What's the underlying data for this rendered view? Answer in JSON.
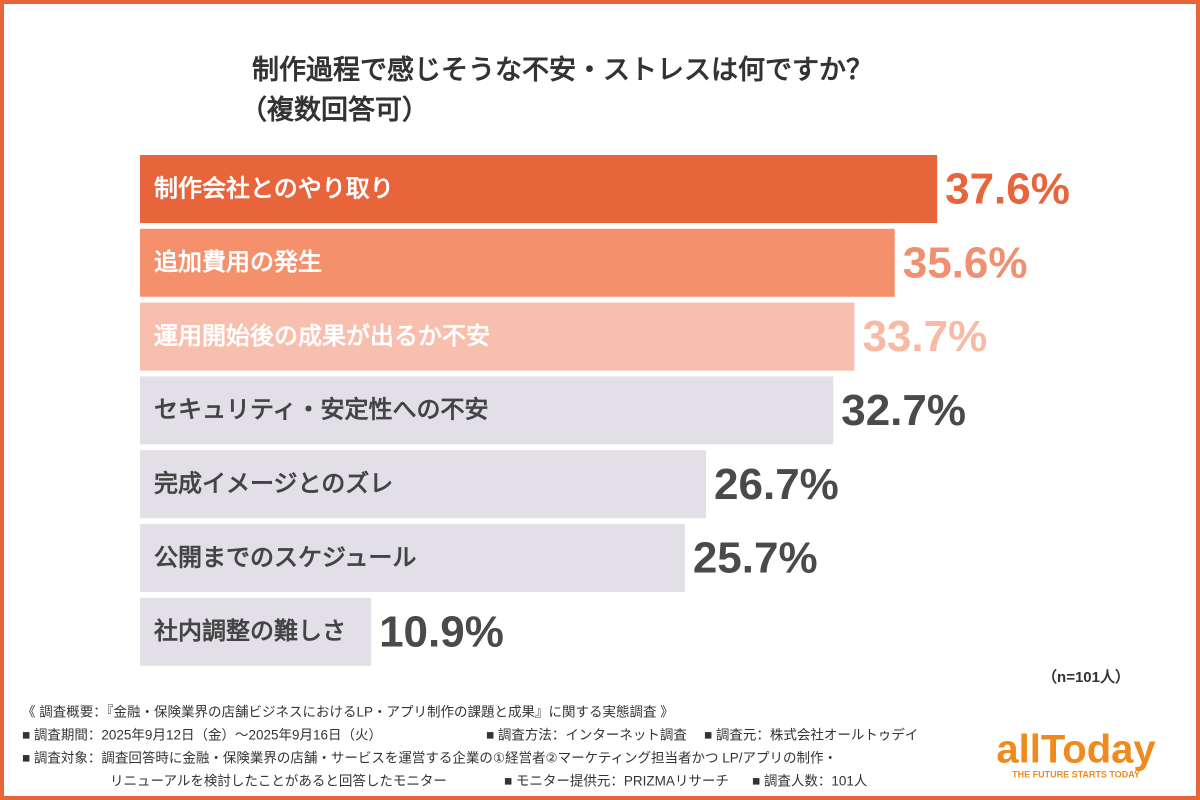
{
  "chart_data": {
    "type": "bar",
    "orientation": "horizontal",
    "title": [
      "制作過程で感じそうな不安・ストレスは何ですか？",
      "（複数回答可）"
    ],
    "categories": [
      "制作会社とのやり取り",
      "追加費用の発生",
      "運用開始後の成果が出るか不安",
      "セキュリティ・安定性への不安",
      "完成イメージとのズレ",
      "公開までのスケジュール",
      "社内調整の難しさ"
    ],
    "values": [
      37.6,
      35.6,
      33.7,
      32.7,
      26.7,
      25.7,
      10.9
    ],
    "value_labels": [
      "37.6%",
      "35.6%",
      "33.7%",
      "32.7%",
      "26.7%",
      "25.7%",
      "10.9%"
    ],
    "colors": [
      "#e8643a",
      "#f4916c",
      "#f9bfae",
      "#e2e0e6",
      "#e2e0e6",
      "#e2e0e6",
      "#e2e0e6"
    ],
    "category_text_colors": [
      "#ffffff",
      "#ffffff",
      "#ffffff",
      "#444444",
      "#444444",
      "#444444",
      "#444444"
    ],
    "value_label_colors": [
      "#e8643a",
      "#f09070",
      "#f8b9a5",
      "#4a4a4a",
      "#4a4a4a",
      "#4a4a4a",
      "#4a4a4a"
    ],
    "sample_note": "（n=101人）",
    "notes": [
      [
        "《 調査概要：『金融・保険業界の店舗ビジネスにおけるLP・アプリ制作の課題と成果』に関する実態調査 》"
      ],
      [
        "■ 調査期間：2025年9月12日（金）〜2025年9月16日（火）",
        "■ 調査方法：インターネット調査",
        "■ 調査元：株式会社オールトゥデイ"
      ],
      [
        "■ 調査対象：調査回答時に金融・保険業界の店舗・サービスを運営する企業の①経営者②マーケティング担当者かつ LP/アプリの制作・"
      ],
      [
        "リニューアルを検討したことがあると回答したモニター",
        "■ モニター提供元：PRIZMAリサーチ",
        "■ 調査人数：101人"
      ]
    ],
    "logo": "allToday",
    "logo_tagline": "THE FUTURE STARTS TODAY"
  }
}
